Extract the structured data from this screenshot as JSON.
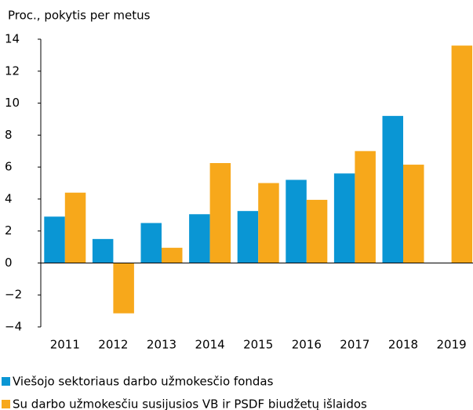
{
  "chart_data": {
    "type": "bar",
    "y_axis_label": "Proc., pokytis per metus",
    "categories": [
      "2011",
      "2012",
      "2013",
      "2014",
      "2015",
      "2016",
      "2017",
      "2018",
      "2019"
    ],
    "series": [
      {
        "name": "Viešojo sektoriaus darbo užmokesčio fondas",
        "color": "#0a96d4",
        "values": [
          2.9,
          1.5,
          2.5,
          3.05,
          3.25,
          5.2,
          5.6,
          9.2,
          null
        ]
      },
      {
        "name": "Su darbo užmokesčiu susijusios VB ir PSDF biudžetų išlaidos",
        "color": "#f7a81b",
        "values": [
          4.4,
          -3.15,
          0.95,
          6.25,
          5.0,
          3.95,
          7.0,
          6.15,
          13.6
        ]
      }
    ],
    "ylim": [
      -4,
      14
    ],
    "yticks": [
      {
        "value": -4,
        "label": "−4"
      },
      {
        "value": -2,
        "label": "−2"
      },
      0,
      2,
      4,
      6,
      8,
      10,
      12,
      14
    ],
    "grid": false
  }
}
